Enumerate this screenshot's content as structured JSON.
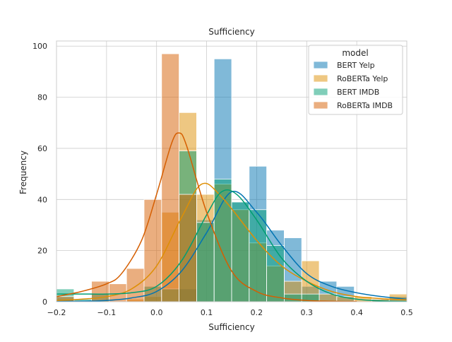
{
  "chart_data": {
    "type": "histogram",
    "title": "Sufficiency",
    "xlabel": "Sufficiency",
    "ylabel": "Frequency",
    "xlim": [
      -0.2,
      0.5
    ],
    "ylim": [
      0,
      102
    ],
    "xticks": [
      -0.2,
      -0.1,
      0.0,
      0.1,
      0.2,
      0.3,
      0.4,
      0.5
    ],
    "xtick_labels": [
      "−0.2",
      "−0.1",
      "0.0",
      "0.1",
      "0.2",
      "0.3",
      "0.4",
      "0.5"
    ],
    "yticks": [
      0,
      20,
      40,
      60,
      80,
      100
    ],
    "ytick_labels": [
      "0",
      "20",
      "40",
      "60",
      "80",
      "100"
    ],
    "grid": true,
    "bin_edges": [
      -0.2,
      -0.165,
      -0.13,
      -0.095,
      -0.06,
      -0.025,
      0.01,
      0.045,
      0.08,
      0.115,
      0.15,
      0.185,
      0.22,
      0.255,
      0.29,
      0.325,
      0.36,
      0.395,
      0.43,
      0.465,
      0.5
    ],
    "legend": {
      "title": "model",
      "placement": "top-right"
    },
    "series": [
      {
        "name": "BERT Yelp",
        "color": "#0173b2",
        "counts": [
          1,
          0,
          0,
          0,
          0,
          0,
          0,
          5,
          32,
          95,
          39,
          53,
          28,
          25,
          6,
          8,
          6,
          0,
          1,
          2
        ],
        "kde": [
          [
            -0.2,
            0.1
          ],
          [
            -0.15,
            0.2
          ],
          [
            -0.1,
            0.5
          ],
          [
            -0.05,
            1.5
          ],
          [
            0.0,
            4
          ],
          [
            0.05,
            12
          ],
          [
            0.1,
            27
          ],
          [
            0.15,
            43
          ],
          [
            0.2,
            35
          ],
          [
            0.25,
            22
          ],
          [
            0.3,
            11
          ],
          [
            0.35,
            6
          ],
          [
            0.4,
            3.5
          ],
          [
            0.45,
            2
          ],
          [
            0.5,
            1
          ]
        ]
      },
      {
        "name": "RoBERTa Yelp",
        "color": "#de8f05",
        "counts": [
          0,
          0,
          0,
          0,
          1,
          2,
          35,
          74,
          42,
          46,
          36,
          23,
          14,
          8,
          16,
          3,
          2,
          2,
          1,
          3
        ],
        "kde": [
          [
            -0.2,
            0.5
          ],
          [
            -0.15,
            1
          ],
          [
            -0.1,
            2
          ],
          [
            -0.05,
            5
          ],
          [
            0.0,
            14
          ],
          [
            0.05,
            33
          ],
          [
            0.09,
            46
          ],
          [
            0.13,
            41
          ],
          [
            0.2,
            24
          ],
          [
            0.25,
            14
          ],
          [
            0.3,
            8
          ],
          [
            0.35,
            4
          ],
          [
            0.4,
            2
          ],
          [
            0.45,
            1.2
          ],
          [
            0.5,
            0.8
          ]
        ]
      },
      {
        "name": "BERT IMDB",
        "color": "#029e73",
        "counts": [
          5,
          1,
          3,
          0,
          0,
          6,
          5,
          59,
          31,
          48,
          39,
          36,
          22,
          3,
          3,
          0,
          0,
          0,
          0,
          0
        ],
        "kde": [
          [
            -0.2,
            3
          ],
          [
            -0.15,
            3
          ],
          [
            -0.1,
            3
          ],
          [
            -0.05,
            3.5
          ],
          [
            0.0,
            6
          ],
          [
            0.05,
            16
          ],
          [
            0.1,
            34
          ],
          [
            0.13,
            43
          ],
          [
            0.16,
            42
          ],
          [
            0.2,
            32
          ],
          [
            0.25,
            17
          ],
          [
            0.3,
            8
          ],
          [
            0.35,
            3
          ],
          [
            0.4,
            1
          ],
          [
            0.45,
            0.3
          ],
          [
            0.5,
            0.1
          ]
        ]
      },
      {
        "name": "RoBERTa IMDB",
        "color": "#d55e00",
        "counts": [
          2,
          0,
          8,
          7,
          13,
          40,
          97,
          42,
          0,
          0,
          0,
          0,
          0,
          0,
          0,
          0,
          0,
          0,
          0,
          0
        ],
        "kde": [
          [
            -0.2,
            2
          ],
          [
            -0.15,
            4
          ],
          [
            -0.1,
            7
          ],
          [
            -0.07,
            11
          ],
          [
            -0.03,
            24
          ],
          [
            0.0,
            42
          ],
          [
            0.03,
            62
          ],
          [
            0.045,
            66
          ],
          [
            0.06,
            61
          ],
          [
            0.1,
            35
          ],
          [
            0.15,
            12
          ],
          [
            0.2,
            4
          ],
          [
            0.25,
            1.5
          ],
          [
            0.3,
            0.5
          ],
          [
            0.35,
            0.2
          ],
          [
            0.4,
            0.1
          ]
        ]
      }
    ]
  }
}
